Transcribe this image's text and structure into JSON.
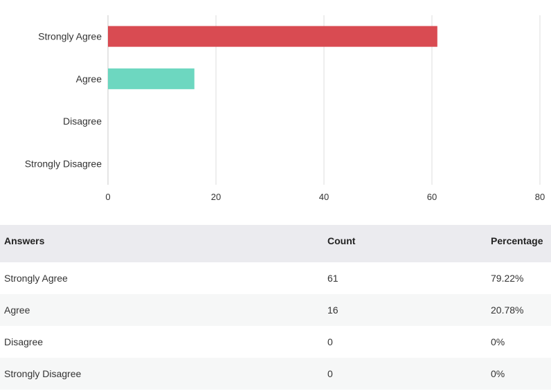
{
  "chart_data": {
    "type": "bar",
    "orientation": "horizontal",
    "categories": [
      "Strongly Agree",
      "Agree",
      "Disagree",
      "Strongly Disagree"
    ],
    "values": [
      61,
      16,
      0,
      0
    ],
    "bar_colors": [
      "#d94b52",
      "#6dd7c0",
      "#cccccc",
      "#cccccc"
    ],
    "xlim": [
      0,
      80
    ],
    "x_ticks": [
      "0",
      "20",
      "40",
      "60",
      "80"
    ],
    "grid": true,
    "legend": "none",
    "title": "",
    "xlabel": "",
    "ylabel": ""
  },
  "table": {
    "headers": {
      "answers": "Answers",
      "count": "Count",
      "percentage": "Percentage"
    },
    "rows": [
      {
        "answer": "Strongly Agree",
        "count": "61",
        "percentage": "79.22%"
      },
      {
        "answer": "Agree",
        "count": "16",
        "percentage": "20.78%"
      },
      {
        "answer": "Disagree",
        "count": "0",
        "percentage": "0%"
      },
      {
        "answer": "Strongly Disagree",
        "count": "0",
        "percentage": "0%"
      }
    ]
  }
}
